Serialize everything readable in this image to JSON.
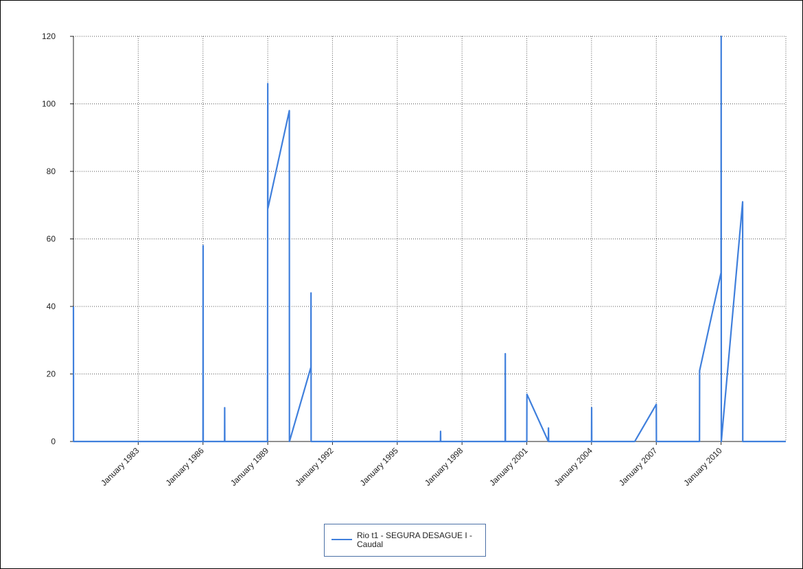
{
  "colors": {
    "series": "#3f7fdc",
    "grid": "#555555",
    "axis": "#222222"
  },
  "chart_data": {
    "type": "line",
    "title": "",
    "xlabel": "",
    "ylabel": "",
    "x_type": "date",
    "xlim": [
      "1980-01-01",
      "2013-01-01"
    ],
    "ylim": [
      0,
      120
    ],
    "y_ticks": [
      0,
      20,
      40,
      60,
      80,
      100,
      120
    ],
    "x_ticks": [
      {
        "date": "1983-01-01",
        "label": "January 1983"
      },
      {
        "date": "1986-01-01",
        "label": "January 1986"
      },
      {
        "date": "1989-01-01",
        "label": "January 1989"
      },
      {
        "date": "1992-01-01",
        "label": "January 1992"
      },
      {
        "date": "1995-01-01",
        "label": "January 1995"
      },
      {
        "date": "1998-01-01",
        "label": "January 1998"
      },
      {
        "date": "2001-01-01",
        "label": "January 2001"
      },
      {
        "date": "2004-01-01",
        "label": "January 2004"
      },
      {
        "date": "2007-01-01",
        "label": "January 2007"
      },
      {
        "date": "2010-01-01",
        "label": "January 2010"
      }
    ],
    "grid": true,
    "legend_position": "bottom-center",
    "series": [
      {
        "name": "Rio t1 - SEGURA DESAGUE I - Caudal",
        "points": [
          [
            "1980-01-01",
            40
          ],
          [
            "1980-01-03",
            0
          ],
          [
            "1986-01-01",
            0
          ],
          [
            "1986-01-03",
            58
          ],
          [
            "1986-01-05",
            0
          ],
          [
            "1987-01-01",
            0
          ],
          [
            "1987-01-03",
            10
          ],
          [
            "1987-01-05",
            0
          ],
          [
            "1988-12-28",
            0
          ],
          [
            "1989-01-01",
            106
          ],
          [
            "1989-01-03",
            69
          ],
          [
            "1990-01-01",
            98
          ],
          [
            "1990-01-03",
            0
          ],
          [
            "1991-01-01",
            22
          ],
          [
            "1991-01-03",
            44
          ],
          [
            "1991-01-05",
            0
          ],
          [
            "1997-01-01",
            0
          ],
          [
            "1997-01-03",
            3
          ],
          [
            "1997-01-05",
            0
          ],
          [
            "2000-01-01",
            0
          ],
          [
            "2000-01-03",
            26
          ],
          [
            "2000-01-05",
            0
          ],
          [
            "2001-01-01",
            0
          ],
          [
            "2001-01-03",
            14
          ],
          [
            "2002-01-01",
            0
          ],
          [
            "2002-01-03",
            4
          ],
          [
            "2002-01-05",
            0
          ],
          [
            "2004-01-01",
            0
          ],
          [
            "2004-01-03",
            10
          ],
          [
            "2004-01-05",
            0
          ],
          [
            "2006-01-01",
            0
          ],
          [
            "2007-01-01",
            11
          ],
          [
            "2007-01-03",
            0
          ],
          [
            "2009-01-01",
            0
          ],
          [
            "2009-01-03",
            21
          ],
          [
            "2010-01-01",
            50
          ],
          [
            "2010-01-03",
            120
          ],
          [
            "2010-01-05",
            0
          ],
          [
            "2011-01-01",
            71
          ],
          [
            "2011-01-03",
            0
          ],
          [
            "2013-01-01",
            0
          ]
        ]
      }
    ]
  },
  "legend": {
    "label": "Rio t1 - SEGURA DESAGUE I - Caudal"
  }
}
